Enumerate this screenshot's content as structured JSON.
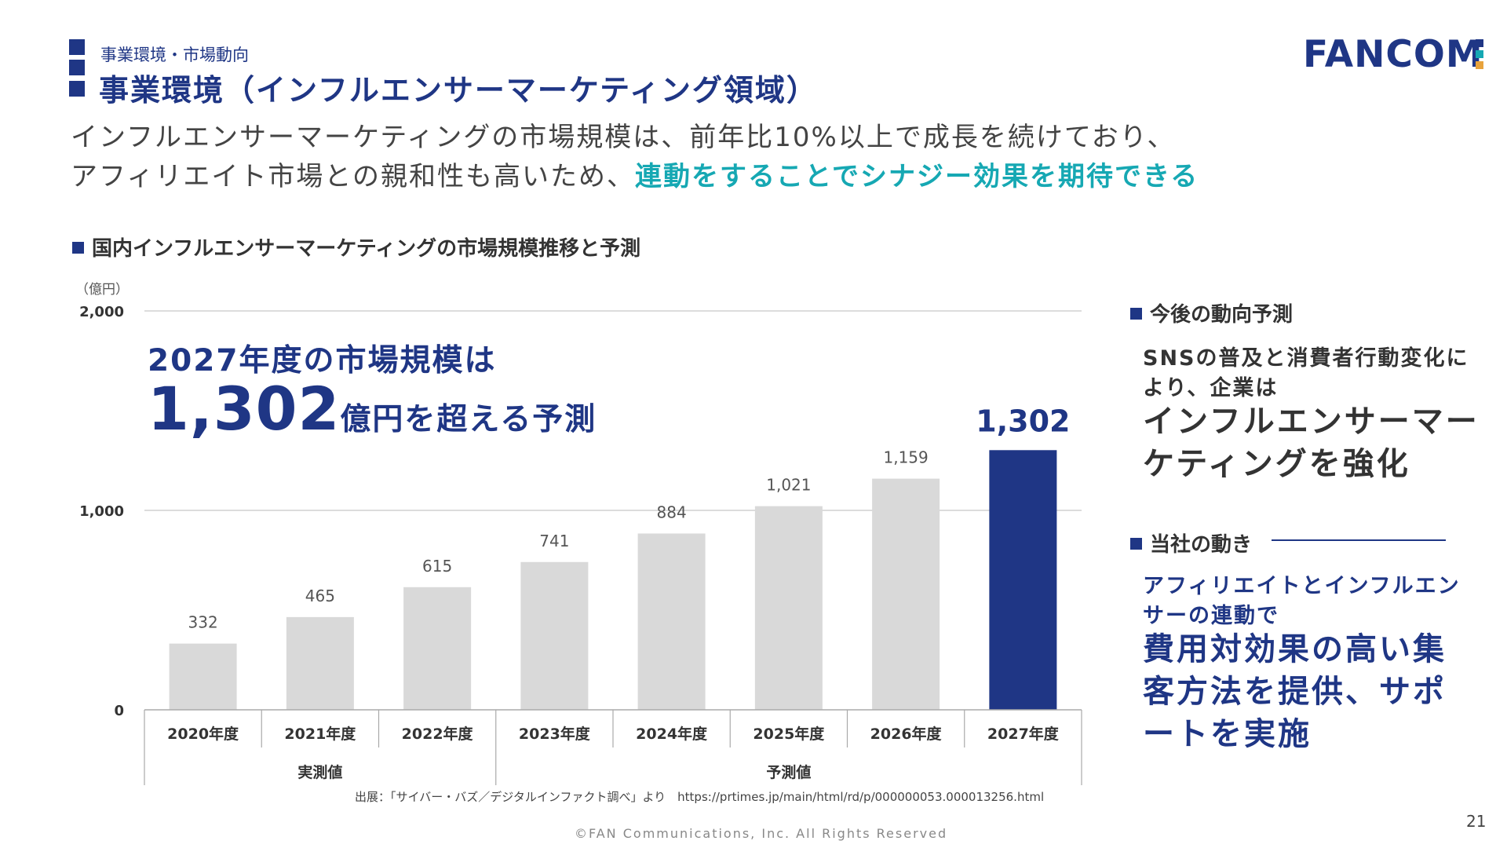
{
  "header": {
    "breadcrumb": "事業環境・市場動向",
    "title": "事業環境（インフルエンサーマーケティング領域）",
    "logo": "FANCOM"
  },
  "lead": {
    "line1": "インフルエンサーマーケティングの市場規模は、前年比10%以上で成長を続けており、",
    "line2_plain": "アフィリエイト市場との親和性も高いため、",
    "line2_highlight": "連動をすることでシナジー効果を期待できる"
  },
  "chart_section": {
    "title": "国内インフルエンサーマーケティングの市場規模推移と予測",
    "unit": "（億円）"
  },
  "callout": {
    "line1": "2027年度の市場規模は",
    "big_value": "1,302",
    "line2_suffix": "億円を超える予測"
  },
  "chart_data": {
    "type": "bar",
    "title": "国内インフルエンサーマーケティングの市場規模推移と予測",
    "ylabel": "（億円）",
    "xlabel": "",
    "ylim": [
      0,
      2000
    ],
    "yticks": [
      0,
      1000,
      2000
    ],
    "ytick_labels": [
      "0",
      "1,000",
      "2,000"
    ],
    "grid": true,
    "categories": [
      "2020年度",
      "2021年度",
      "2022年度",
      "2023年度",
      "2024年度",
      "2025年度",
      "2026年度",
      "2027年度"
    ],
    "values": [
      332,
      465,
      615,
      741,
      884,
      1021,
      1159,
      1302
    ],
    "value_labels": [
      "332",
      "465",
      "615",
      "741",
      "884",
      "1,021",
      "1,159",
      "1,302"
    ],
    "groups": [
      {
        "label": "実測値",
        "start": 0,
        "end": 2
      },
      {
        "label": "予測値",
        "start": 3,
        "end": 7
      }
    ],
    "highlight_index": 7,
    "colors": {
      "bar": "#d9d9d9",
      "highlight": "#1f3685",
      "grid": "#d0d0d0"
    }
  },
  "source": "出展：「サイバー・バズ／デジタルインファクト調べ」より　https://prtimes.jp/main/html/rd/p/000000053.000013256.html",
  "right_panel": {
    "trend": {
      "heading": "今後の動向予測",
      "sub": "SNSの普及と消費者行動変化により、企業は",
      "main": "インフルエンサーマーケティングを強化"
    },
    "company": {
      "heading": "当社の動き",
      "sub": "アフィリエイトとインフルエンサーの連動で",
      "main": "費用対効果の高い集客方法を提供、サポートを実施"
    }
  },
  "footer": {
    "copyright": "©FAN Communications, Inc. All Rights Reserved",
    "page_number": "21"
  },
  "colors": {
    "navy": "#1f3685",
    "teal": "#16a8b3"
  }
}
